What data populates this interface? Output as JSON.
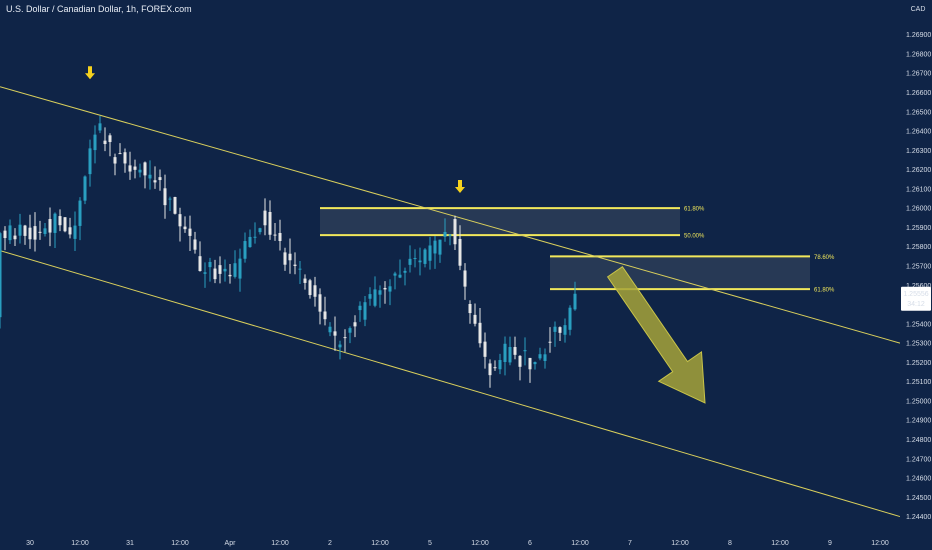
{
  "title": "U.S. Dollar / Canadian Dollar, 1h, FOREX.com",
  "currency": "CAD",
  "price_tag": {
    "price": "1.25556",
    "countdown": "34:12"
  },
  "colors": {
    "background": "#0f2447",
    "up": "#2a9fc0",
    "down": "#e6e6e6",
    "channel": "#d9cf5c",
    "fib": "#f2e85b",
    "zone_fill": "#2b3d58",
    "arrow": "#a6a33a",
    "marker": "#f5d21e"
  },
  "chart_data": {
    "type": "candlestick",
    "y_axis": {
      "range": [
        1.2432,
        1.2708
      ],
      "ticks": [
        "1.26900",
        "1.26800",
        "1.26700",
        "1.26600",
        "1.26500",
        "1.26400",
        "1.26300",
        "1.26200",
        "1.26100",
        "1.26000",
        "1.25900",
        "1.25800",
        "1.25700",
        "1.25600",
        "1.25500",
        "1.25400",
        "1.25300",
        "1.25200",
        "1.25100",
        "1.25000",
        "1.24900",
        "1.24800",
        "1.24700",
        "1.24600",
        "1.24500",
        "1.24400"
      ]
    },
    "x_axis": {
      "range": [
        0,
        180
      ],
      "ticks": [
        {
          "t": 6,
          "label": "30"
        },
        {
          "t": 16,
          "label": "12:00"
        },
        {
          "t": 26,
          "label": "31"
        },
        {
          "t": 36,
          "label": "12:00"
        },
        {
          "t": 46,
          "label": "Apr"
        },
        {
          "t": 56,
          "label": "12:00"
        },
        {
          "t": 66,
          "label": "2"
        },
        {
          "t": 76,
          "label": "12:00"
        },
        {
          "t": 86,
          "label": "5"
        },
        {
          "t": 96,
          "label": "12:00"
        },
        {
          "t": 106,
          "label": "6"
        },
        {
          "t": 116,
          "label": "12:00"
        },
        {
          "t": 126,
          "label": "7"
        },
        {
          "t": 136,
          "label": "12:00"
        },
        {
          "t": 146,
          "label": "8"
        },
        {
          "t": 156,
          "label": "12:00"
        },
        {
          "t": 166,
          "label": "9"
        },
        {
          "t": 176,
          "label": "12:00"
        }
      ]
    },
    "price_path": [
      [
        0,
        1.2587
      ],
      [
        6,
        1.2587
      ],
      [
        12,
        1.2593
      ],
      [
        15,
        1.2585
      ],
      [
        18,
        1.2628
      ],
      [
        20,
        1.2642
      ],
      [
        23,
        1.2628
      ],
      [
        27,
        1.2622
      ],
      [
        32,
        1.2612
      ],
      [
        38,
        1.2589
      ],
      [
        40,
        1.2569
      ],
      [
        45,
        1.2566
      ],
      [
        47,
        1.2563
      ],
      [
        50,
        1.2584
      ],
      [
        53,
        1.2596
      ],
      [
        56,
        1.258
      ],
      [
        60,
        1.2567
      ],
      [
        64,
        1.255
      ],
      [
        66,
        1.2535
      ],
      [
        69,
        1.253
      ],
      [
        72,
        1.2545
      ],
      [
        75,
        1.2554
      ],
      [
        78,
        1.256
      ],
      [
        82,
        1.2568
      ],
      [
        86,
        1.2576
      ],
      [
        89,
        1.2583
      ],
      [
        91,
        1.2592
      ],
      [
        93,
        1.256
      ],
      [
        95,
        1.2541
      ],
      [
        97,
        1.2526
      ],
      [
        99,
        1.251
      ],
      [
        101,
        1.2525
      ],
      [
        104,
        1.2523
      ],
      [
        107,
        1.2521
      ],
      [
        110,
        1.253
      ],
      [
        113,
        1.254
      ],
      [
        115,
        1.2547
      ]
    ],
    "channel_lines": [
      {
        "name": "upper",
        "from": [
          0,
          1.2663
        ],
        "to": [
          180,
          1.253
        ]
      },
      {
        "name": "lower",
        "from": [
          0,
          1.2578
        ],
        "to": [
          180,
          1.244
        ]
      }
    ],
    "fib_zones": [
      {
        "top": 1.26,
        "bottom": 1.2586,
        "t_start": 64,
        "t_end": 136,
        "top_label": "61.80%",
        "bottom_label": "50.00%"
      },
      {
        "top": 1.2575,
        "bottom": 1.2558,
        "t_start": 110,
        "t_end": 162,
        "top_label": "78.60%",
        "bottom_label": "61.80%"
      }
    ],
    "markers": [
      {
        "t": 18,
        "price": 1.267
      },
      {
        "t": 92,
        "price": 1.2611
      }
    ],
    "projection_arrow": {
      "from": [
        123,
        1.2567
      ],
      "to": [
        141,
        1.2499
      ]
    },
    "last_price": 1.25556
  }
}
